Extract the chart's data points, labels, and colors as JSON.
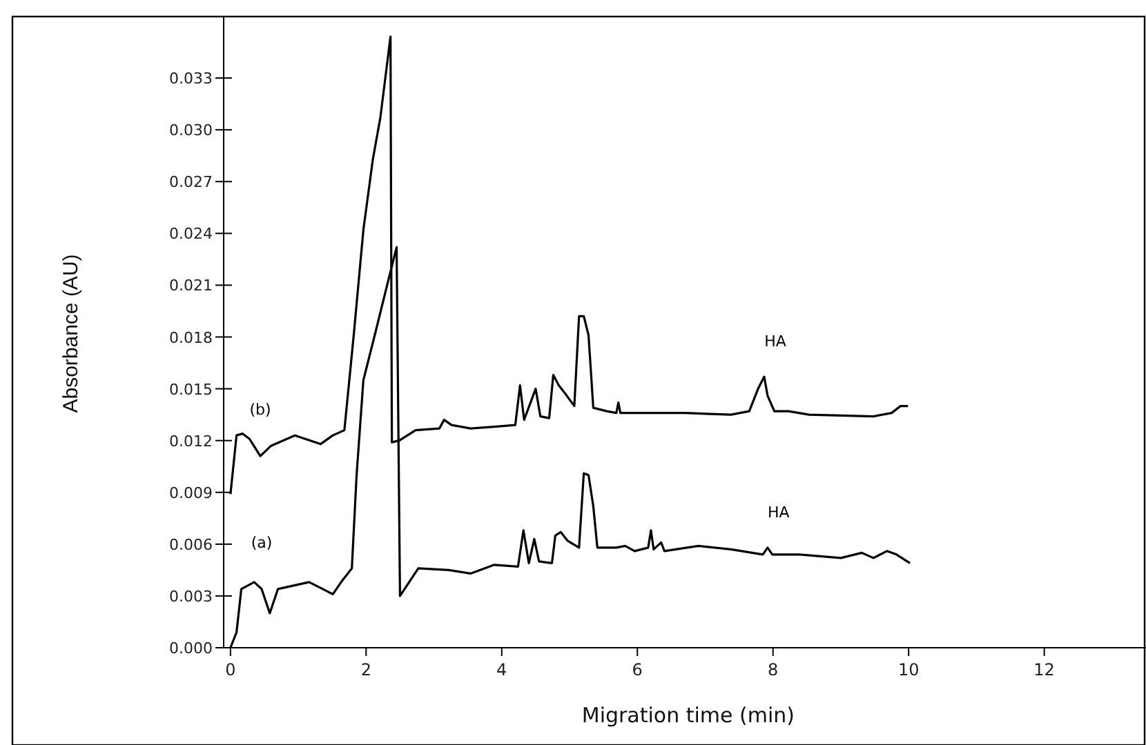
{
  "chart_data": {
    "type": "line",
    "xlabel": "Migration time (min)",
    "ylabel": "Absorbance (AU)",
    "xlim": [
      -0.1,
      13.5
    ],
    "xticks": [
      0,
      2,
      4,
      6,
      8,
      10,
      12
    ],
    "ylim": [
      0,
      0.0364
    ],
    "yticks": [
      {
        "value": 0,
        "label": "0.000"
      },
      {
        "value": 0.003,
        "label": "0.003"
      },
      {
        "value": 0.006,
        "label": "0.006"
      },
      {
        "value": 0.009,
        "label": "0.009"
      },
      {
        "value": 0.012,
        "label": "0.012"
      },
      {
        "value": 0.015,
        "label": "0.015"
      },
      {
        "value": 0.018,
        "label": "0.018"
      },
      {
        "value": 0.021,
        "label": "0.021"
      },
      {
        "value": 0.024,
        "label": "0.024"
      },
      {
        "value": 0.027,
        "label": "0.027"
      },
      {
        "value": 0.03,
        "label": "0.030"
      },
      {
        "value": 0.033,
        "label": "0.033"
      }
    ],
    "grid": false,
    "marker": "none",
    "line_style": "solid",
    "series": [
      {
        "name": "(b)",
        "color": "#000000",
        "x": [
          0,
          0.09,
          0.18,
          0.28,
          0.44,
          0.6,
          0.95,
          1.33,
          1.51,
          1.68,
          1.82,
          1.96,
          2.1,
          2.21,
          2.36,
          2.38,
          2.49,
          2.73,
          3.08,
          3.15,
          3.26,
          3.54,
          3.89,
          4.2,
          4.27,
          4.33,
          4.5,
          4.57,
          4.7,
          4.76,
          4.84,
          4.94,
          5.07,
          5.14,
          5.21,
          5.28,
          5.35,
          5.55,
          5.69,
          5.72,
          5.75,
          6.23,
          6.7,
          7.38,
          7.65,
          7.78,
          7.87,
          7.92,
          8.02,
          8.23,
          8.53,
          9.48,
          9.75,
          9.88,
          9.99
        ],
        "values": [
          0.0089,
          0.0123,
          0.0124,
          0.0121,
          0.0111,
          0.0117,
          0.0123,
          0.0118,
          0.0123,
          0.0126,
          0.0182,
          0.0242,
          0.0283,
          0.0307,
          0.0354,
          0.0119,
          0.012,
          0.0126,
          0.0127,
          0.0132,
          0.0129,
          0.0127,
          0.0128,
          0.0129,
          0.0152,
          0.0132,
          0.015,
          0.0134,
          0.0133,
          0.0158,
          0.0152,
          0.0147,
          0.014,
          0.0192,
          0.0192,
          0.0181,
          0.0139,
          0.0137,
          0.0136,
          0.0142,
          0.0136,
          0.0136,
          0.0136,
          0.0135,
          0.0137,
          0.015,
          0.0157,
          0.0146,
          0.0137,
          0.0137,
          0.0135,
          0.0134,
          0.0136,
          0.014,
          0.014
        ]
      },
      {
        "name": "(a)",
        "color": "#000000",
        "x": [
          0,
          0.09,
          0.16,
          0.35,
          0.46,
          0.58,
          0.7,
          1.16,
          1.51,
          1.65,
          1.79,
          1.86,
          1.96,
          2.14,
          2.31,
          2.45,
          2.5,
          2.77,
          3.22,
          3.54,
          3.89,
          4.24,
          4.32,
          4.4,
          4.48,
          4.55,
          4.74,
          4.79,
          4.87,
          4.97,
          5.14,
          5.21,
          5.28,
          5.35,
          5.41,
          5.69,
          5.82,
          5.96,
          6.16,
          6.2,
          6.24,
          6.35,
          6.4,
          6.9,
          7.38,
          7.85,
          7.92,
          7.99,
          8.39,
          9.0,
          9.31,
          9.48,
          9.68,
          9.82,
          10.02
        ],
        "values": [
          0,
          0.0009,
          0.0034,
          0.0038,
          0.0034,
          0.002,
          0.0034,
          0.0038,
          0.0031,
          0.0039,
          0.0046,
          0.01,
          0.0155,
          0.0183,
          0.021,
          0.0232,
          0.003,
          0.0046,
          0.0045,
          0.0043,
          0.0048,
          0.0047,
          0.0068,
          0.0049,
          0.0063,
          0.005,
          0.0049,
          0.0065,
          0.0067,
          0.0062,
          0.0058,
          0.0101,
          0.01,
          0.0082,
          0.0058,
          0.0058,
          0.0059,
          0.0056,
          0.0058,
          0.0068,
          0.0057,
          0.0061,
          0.0056,
          0.0059,
          0.0057,
          0.0054,
          0.0058,
          0.0054,
          0.0054,
          0.0052,
          0.0055,
          0.0052,
          0.0056,
          0.0054,
          0.0049
        ]
      }
    ],
    "annotations": [
      {
        "text": "HA",
        "x": 7.87,
        "y": 0.0157
      },
      {
        "text": "HA",
        "x": 7.92,
        "y": 0.0058
      }
    ]
  }
}
